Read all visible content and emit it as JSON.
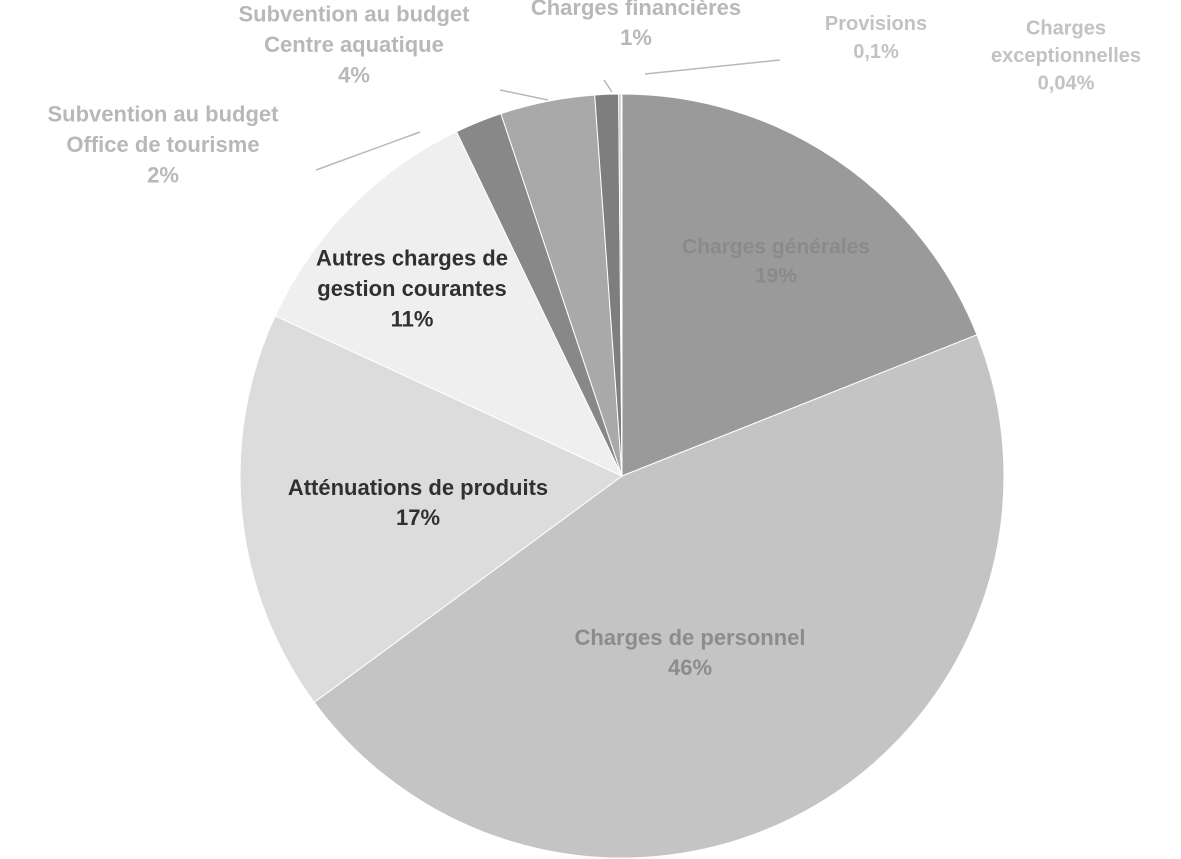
{
  "chart_data": {
    "type": "pie",
    "title": "",
    "start_angle_deg": 0,
    "direction": "clockwise",
    "slices": [
      {
        "label_lines": [
          "Charges générales"
        ],
        "value_label": "19%",
        "value": 19,
        "color": "#9a9a9a",
        "label_color": "#8a8a8a"
      },
      {
        "label_lines": [
          "Charges de personnel"
        ],
        "value_label": "46%",
        "value": 46,
        "color": "#c4c4c4",
        "label_color": "#8c8c8c"
      },
      {
        "label_lines": [
          "Atténuations de produits"
        ],
        "value_label": "17%",
        "value": 17,
        "color": "#dcdcdc",
        "label_color": "#303030"
      },
      {
        "label_lines": [
          "Autres charges de",
          "gestion courantes"
        ],
        "value_label": "11%",
        "value": 11,
        "color": "#efefef",
        "label_color": "#303030"
      },
      {
        "label_lines": [
          "Subvention au budget",
          "Office de tourisme"
        ],
        "value_label": "2%",
        "value": 2,
        "color": "#888888",
        "label_color": "#b8b8b8"
      },
      {
        "label_lines": [
          "Subvention au budget",
          "Centre aquatique"
        ],
        "value_label": "4%",
        "value": 4,
        "color": "#a9a9a9",
        "label_color": "#b8b8b8"
      },
      {
        "label_lines": [
          "Charges financières"
        ],
        "value_label": "1%",
        "value": 1,
        "color": "#7e7e7e",
        "label_color": "#b8b8b8"
      },
      {
        "label_lines": [
          "Provisions"
        ],
        "value_label": "0,1%",
        "value": 0.1,
        "color": "#bdbdbd",
        "label_color": "#c2c2c2"
      },
      {
        "label_lines": [
          "Charges",
          "exceptionnelles"
        ],
        "value_label": "0,04%",
        "value": 0.04,
        "color": "#b0b0b0",
        "label_color": "#c2c2c2"
      }
    ],
    "legend": "none"
  }
}
